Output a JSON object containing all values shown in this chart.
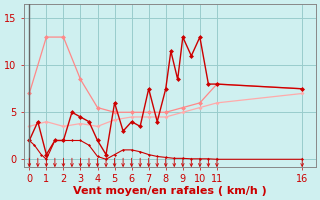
{
  "background_color": "#cff0f0",
  "grid_color": "#99cccc",
  "xlabel": "Vent moyen/en rafales ( km/h )",
  "xlabel_color": "#cc0000",
  "xlabel_fontsize": 8,
  "xlim": [
    -0.3,
    16.8
  ],
  "ylim": [
    -0.8,
    16.5
  ],
  "yticks": [
    0,
    5,
    10,
    15
  ],
  "xticks": [
    0,
    1,
    2,
    3,
    4,
    5,
    6,
    7,
    8,
    9,
    10,
    11,
    16
  ],
  "tick_fontsize": 7,
  "series": [
    {
      "name": "rafales_upper",
      "x": [
        0,
        1,
        2,
        3,
        4,
        5,
        6,
        7,
        8,
        9,
        10,
        11,
        16
      ],
      "y": [
        7,
        13,
        13,
        8.5,
        5.5,
        5,
        5,
        5,
        5,
        5.5,
        6,
        8,
        7.5
      ],
      "color": "#ff8888",
      "linewidth": 0.9,
      "marker": "D",
      "markersize": 2.5,
      "zorder": 2
    },
    {
      "name": "moyen_lower",
      "x": [
        0,
        1,
        2,
        3,
        4,
        5,
        6,
        7,
        8,
        9,
        10,
        11,
        16
      ],
      "y": [
        3.5,
        4,
        3.5,
        3.8,
        3.5,
        4.2,
        4.5,
        4.5,
        4.5,
        5,
        5.5,
        6,
        7
      ],
      "color": "#ffaaaa",
      "linewidth": 0.9,
      "marker": "D",
      "markersize": 2,
      "zorder": 2
    },
    {
      "name": "rafales_jagged",
      "x": [
        0,
        0.5,
        1,
        1.5,
        2,
        2.5,
        3,
        3.5,
        4,
        4.5,
        5,
        5.5,
        6,
        6.5,
        7,
        7.5,
        8,
        8.3,
        8.7,
        9,
        9.5,
        10,
        10.5,
        11,
        16
      ],
      "y": [
        2,
        4,
        0.5,
        2,
        2,
        5,
        4.5,
        4,
        2,
        0.5,
        6,
        3,
        4,
        3.5,
        7.5,
        4,
        7.5,
        11.5,
        8.5,
        13,
        11,
        13,
        8,
        8,
        7.5
      ],
      "color": "#cc0000",
      "linewidth": 1.0,
      "marker": "D",
      "markersize": 2.5,
      "zorder": 4
    },
    {
      "name": "moyen_baseline",
      "x": [
        0,
        0.3,
        0.7,
        1,
        1.5,
        2,
        2.5,
        3,
        3.5,
        4,
        4.5,
        5,
        5.5,
        6,
        6.5,
        7,
        7.5,
        8,
        8.5,
        9,
        9.5,
        10,
        10.5,
        11,
        16
      ],
      "y": [
        2,
        1.5,
        0.5,
        0,
        2,
        2,
        2,
        2,
        1.5,
        0.3,
        0,
        0.5,
        1,
        1,
        0.8,
        0.5,
        0.3,
        0.2,
        0.1,
        0.1,
        0.05,
        0.05,
        0.05,
        0,
        0
      ],
      "color": "#cc0000",
      "linewidth": 0.8,
      "marker": "D",
      "markersize": 1.5,
      "zorder": 3
    }
  ],
  "arrows_x": [
    0,
    0.5,
    1,
    1.5,
    2,
    2.5,
    3,
    3.5,
    4,
    4.5,
    5,
    5.5,
    6,
    6.5,
    7,
    7.5,
    8,
    8.5,
    9,
    9.5,
    10,
    10.5,
    11,
    16
  ],
  "arrow_color": "#cc0000"
}
